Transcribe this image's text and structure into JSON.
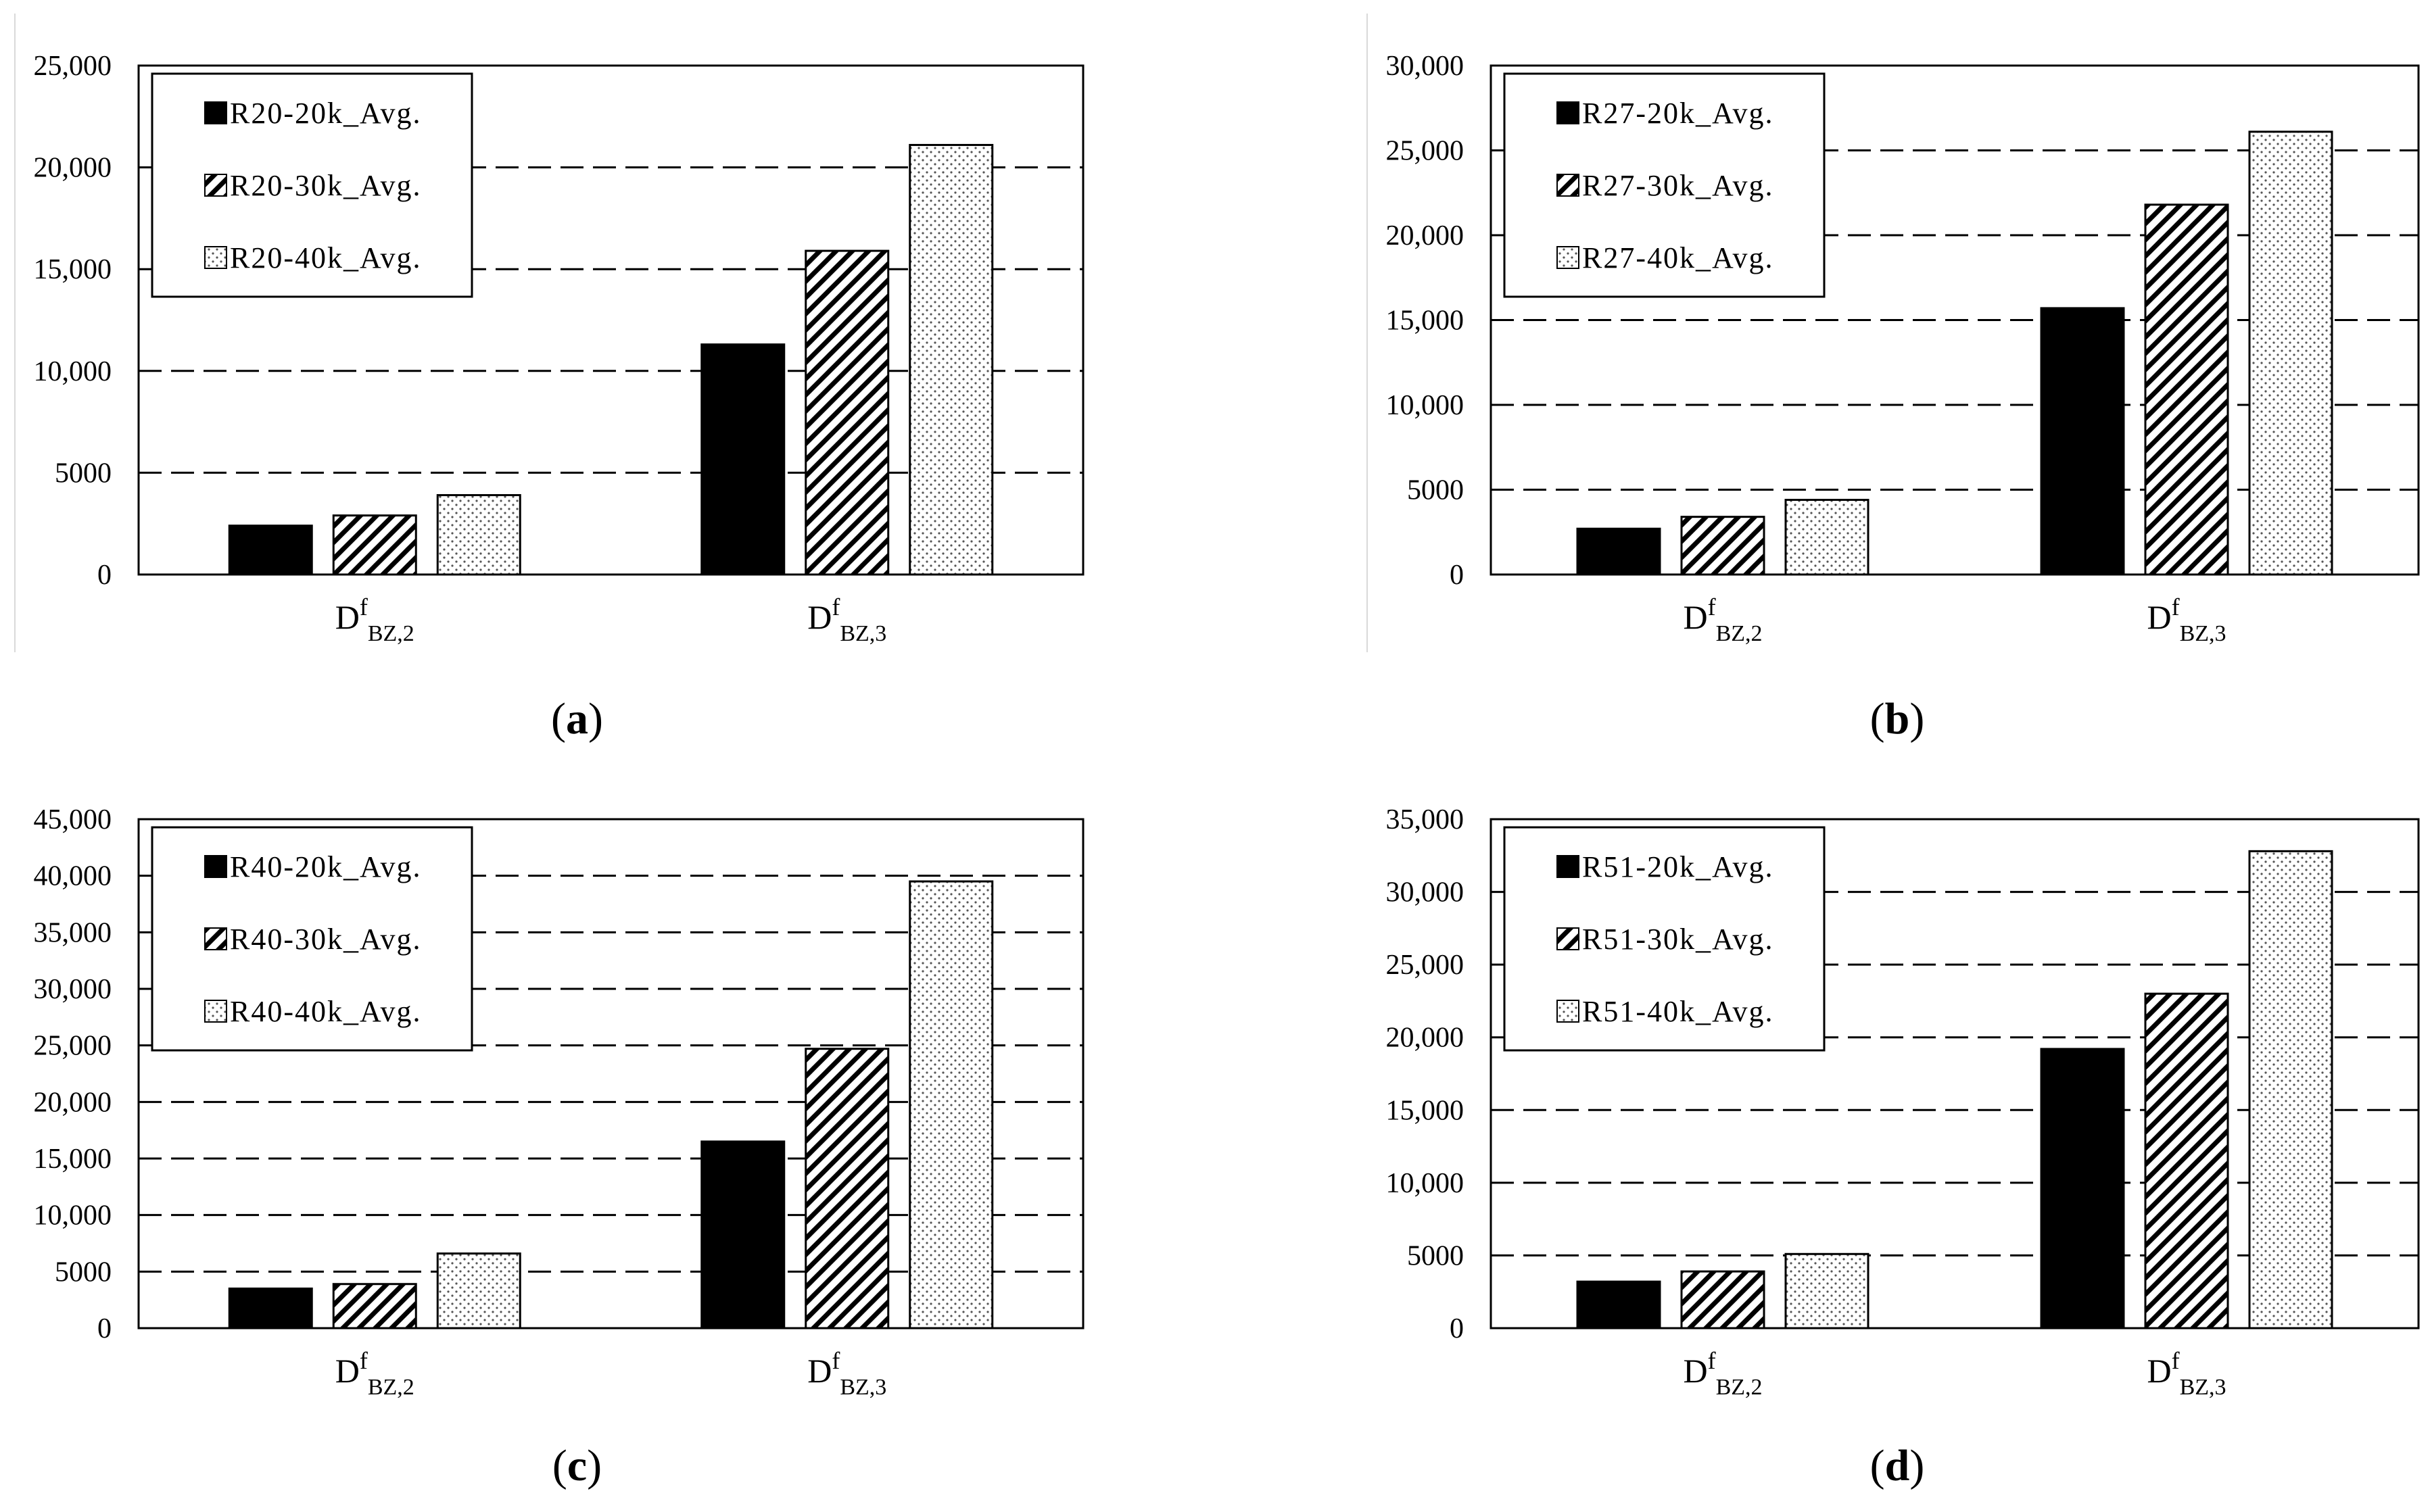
{
  "colors": {
    "series1_fill": "#000000",
    "series2_pattern": "diagonal-hatch",
    "series3_pattern": "dotted",
    "axis": "#000000",
    "grid": "#000000",
    "background": "#ffffff"
  },
  "chart_data": [
    {
      "type": "bar",
      "caption": "a",
      "categories": [
        {
          "base": "D",
          "sup": "f",
          "sub": "BZ,2"
        },
        {
          "base": "D",
          "sup": "f",
          "sub": "BZ,3"
        }
      ],
      "series": [
        {
          "name": "R20-20k_Avg.",
          "values": [
            2400,
            11300
          ]
        },
        {
          "name": "R20-30k_Avg.",
          "values": [
            2900,
            15900
          ]
        },
        {
          "name": "R20-40k_Avg.",
          "values": [
            3900,
            21100
          ]
        }
      ],
      "ylim": [
        0,
        25000
      ],
      "yticks": [
        0,
        5000,
        10000,
        15000,
        20000,
        25000
      ],
      "ytick_labels": [
        "0",
        "5000",
        "10,000",
        "15,000",
        "20,000",
        "25,000"
      ],
      "grid": "horizontal-dashed",
      "legend_position": "top-left"
    },
    {
      "type": "bar",
      "caption": "b",
      "categories": [
        {
          "base": "D",
          "sup": "f",
          "sub": "BZ,2"
        },
        {
          "base": "D",
          "sup": "f",
          "sub": "BZ,3"
        }
      ],
      "series": [
        {
          "name": "R27-20k_Avg.",
          "values": [
            2700,
            15700
          ]
        },
        {
          "name": "R27-30k_Avg.",
          "values": [
            3400,
            21800
          ]
        },
        {
          "name": "R27-40k_Avg.",
          "values": [
            4400,
            26100
          ]
        }
      ],
      "ylim": [
        0,
        30000
      ],
      "yticks": [
        0,
        5000,
        10000,
        15000,
        20000,
        25000,
        30000
      ],
      "ytick_labels": [
        "0",
        "5000",
        "10,000",
        "15,000",
        "20,000",
        "25,000",
        "30,000"
      ],
      "grid": "horizontal-dashed",
      "legend_position": "top-left"
    },
    {
      "type": "bar",
      "caption": "c",
      "categories": [
        {
          "base": "D",
          "sup": "f",
          "sub": "BZ,2"
        },
        {
          "base": "D",
          "sup": "f",
          "sub": "BZ,3"
        }
      ],
      "series": [
        {
          "name": "R40-20k_Avg.",
          "values": [
            3500,
            16500
          ]
        },
        {
          "name": "R40-30k_Avg.",
          "values": [
            3900,
            24700
          ]
        },
        {
          "name": "R40-40k_Avg.",
          "values": [
            6600,
            39500
          ]
        }
      ],
      "ylim": [
        0,
        45000
      ],
      "yticks": [
        0,
        5000,
        10000,
        15000,
        20000,
        25000,
        30000,
        35000,
        40000,
        45000
      ],
      "ytick_labels": [
        "0",
        "5000",
        "10,000",
        "15,000",
        "20,000",
        "25,000",
        "30,000",
        "35,000",
        "40,000",
        "45,000"
      ],
      "grid": "horizontal-dashed",
      "legend_position": "top-left"
    },
    {
      "type": "bar",
      "caption": "d",
      "categories": [
        {
          "base": "D",
          "sup": "f",
          "sub": "BZ,2"
        },
        {
          "base": "D",
          "sup": "f",
          "sub": "BZ,3"
        }
      ],
      "series": [
        {
          "name": "R51-20k_Avg.",
          "values": [
            3200,
            19200
          ]
        },
        {
          "name": "R51-30k_Avg.",
          "values": [
            3900,
            23000
          ]
        },
        {
          "name": "R51-40k_Avg.",
          "values": [
            5100,
            32800
          ]
        }
      ],
      "ylim": [
        0,
        35000
      ],
      "yticks": [
        0,
        5000,
        10000,
        15000,
        20000,
        25000,
        30000,
        35000
      ],
      "ytick_labels": [
        "0",
        "5000",
        "10,000",
        "15,000",
        "20,000",
        "25,000",
        "30,000",
        "35,000"
      ],
      "grid": "horizontal-dashed",
      "legend_position": "top-left"
    }
  ]
}
